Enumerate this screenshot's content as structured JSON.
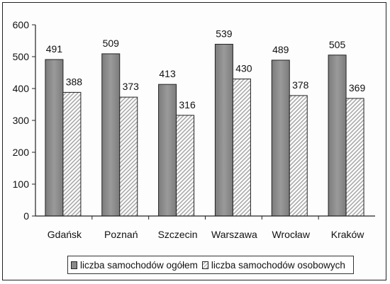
{
  "chart_data": {
    "type": "bar",
    "categories": [
      "Gdańsk",
      "Poznań",
      "Szczecin",
      "Warszawa",
      "Wrocław",
      "Kraków"
    ],
    "series": [
      {
        "name": "liczba samochodów ogółem",
        "values": [
          491,
          509,
          413,
          539,
          489,
          505
        ],
        "color": "#8a8a8a"
      },
      {
        "name": "liczba samochodów osobowych",
        "values": [
          388,
          373,
          316,
          430,
          378,
          369
        ],
        "color": "#d8d8d8"
      }
    ],
    "ylim": [
      0,
      600
    ],
    "yticks": [
      "0",
      "100",
      "200",
      "300",
      "400",
      "500",
      "600"
    ],
    "grid": false,
    "legend": "bottom"
  }
}
